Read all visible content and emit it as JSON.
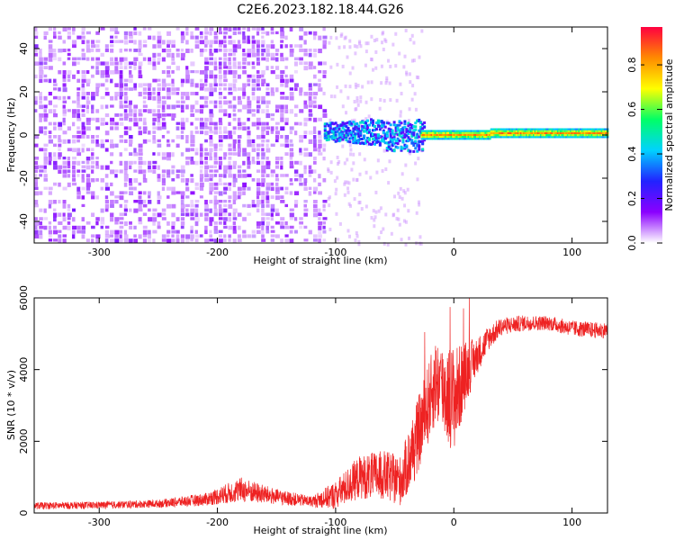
{
  "title": "C2E6.2023.182.18.44.G26",
  "chart_data": [
    {
      "type": "heatmap",
      "name": "spectrogram",
      "xlabel": "Height of straight line (km)",
      "ylabel": "Frequency (Hz)",
      "xlim": [
        -355,
        130
      ],
      "ylim": [
        -50,
        50
      ],
      "xticks": [
        -300,
        -200,
        -100,
        0,
        100
      ],
      "yticks": [
        -40,
        -20,
        0,
        20,
        40
      ],
      "colorbar": {
        "label": "Normalized spectral amplitude",
        "range": [
          0,
          0.97
        ],
        "ticks": [
          "0.0",
          "0.2",
          "0.4",
          "0.6",
          "0.8"
        ],
        "colormap": [
          "#ffffff",
          "#8b00ff",
          "#2222ff",
          "#00d2ff",
          "#00ff66",
          "#ffff00",
          "#ff8a00",
          "#ff0040"
        ]
      },
      "regions": [
        {
          "x": [
            -355,
            -110
          ],
          "description": "noise: scattered violet speckles across all frequencies",
          "amplitude": [
            0.05,
            0.15
          ]
        },
        {
          "x": [
            -110,
            -25
          ],
          "description": "signal emerging near 0 Hz with spread ±8 Hz",
          "amplitude": [
            0.2,
            0.5
          ]
        },
        {
          "x": [
            -25,
            130
          ],
          "description": "narrow strong carrier line near 0 Hz",
          "amplitude": [
            0.7,
            0.95
          ]
        }
      ],
      "grid": false
    },
    {
      "type": "line",
      "name": "snr",
      "xlabel": "Height of straight line (km)",
      "ylabel": "SNR (10 * v/v)",
      "xlim": [
        -355,
        130
      ],
      "ylim": [
        0,
        6000
      ],
      "xticks": [
        -300,
        -200,
        -100,
        0,
        100
      ],
      "yticks": [
        0,
        2000,
        4000,
        6000
      ],
      "color": "#ee2222",
      "series": [
        {
          "x": [
            -355,
            -300,
            -250,
            -210,
            -180,
            -150,
            -120,
            -100,
            -80,
            -60,
            -45,
            -35,
            -25,
            -15,
            -5,
            0,
            5,
            10,
            20,
            30,
            40,
            60,
            80,
            100,
            120,
            130
          ],
          "values": [
            200,
            220,
            260,
            380,
            650,
            450,
            320,
            500,
            1000,
            1050,
            900,
            1700,
            2700,
            3700,
            3300,
            3200,
            3500,
            3900,
            4400,
            4900,
            5200,
            5300,
            5300,
            5150,
            5100,
            5100
          ],
          "noise": [
            100,
            100,
            110,
            180,
            350,
            220,
            150,
            400,
            600,
            700,
            700,
            1000,
            1100,
            1200,
            1400,
            1500,
            1200,
            900,
            500,
            350,
            250,
            220,
            200,
            220,
            220,
            220
          ]
        }
      ],
      "grid": false
    }
  ]
}
